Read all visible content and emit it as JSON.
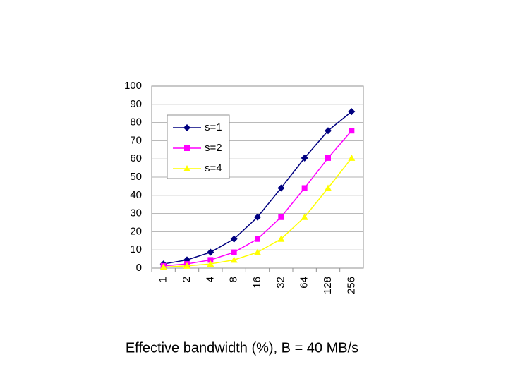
{
  "chart_data": {
    "type": "line",
    "caption": "Effective bandwidth (%), B = 40 MB/s",
    "categories": [
      "1",
      "2",
      "4",
      "8",
      "16",
      "32",
      "64",
      "128",
      "256"
    ],
    "series": [
      {
        "name": "s=1",
        "color": "#000080",
        "marker": "diamond",
        "values": [
          2.3,
          4.5,
          8.7,
          16,
          28,
          44,
          60.5,
          75.5,
          86
        ]
      },
      {
        "name": "s=2",
        "color": "#ff00ff",
        "marker": "square",
        "values": [
          1.2,
          2.3,
          4.5,
          8.7,
          16,
          28,
          44,
          60.5,
          75.5
        ]
      },
      {
        "name": "s=4",
        "color": "#ffff00",
        "marker": "triangle",
        "values": [
          0.6,
          1.2,
          2.3,
          4.5,
          8.7,
          16,
          28,
          44,
          60.5
        ]
      }
    ],
    "ylim": [
      0,
      100
    ],
    "yticks": [
      0,
      10,
      20,
      30,
      40,
      50,
      60,
      70,
      80,
      90,
      100
    ],
    "grid": true
  }
}
